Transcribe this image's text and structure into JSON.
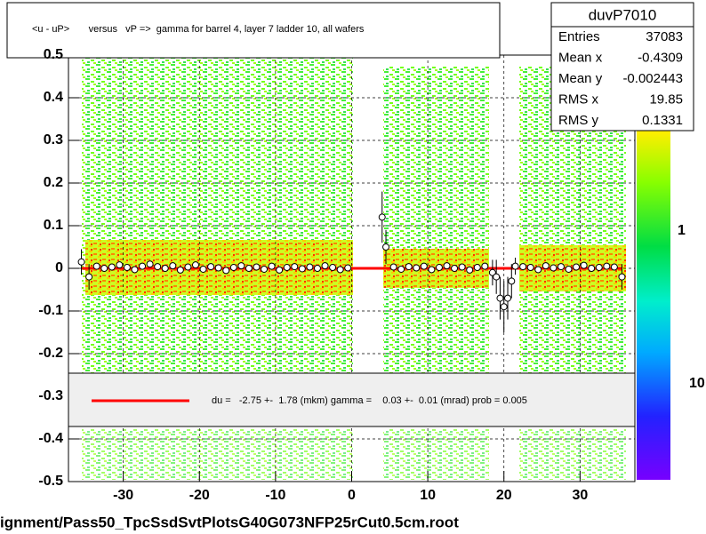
{
  "title": "<u - uP>       versus   vP =>  gamma for barrel 4, layer 7 ladder 10, all wafers",
  "stats": {
    "name": "duvP7010",
    "rows": [
      [
        "Entries",
        "37083"
      ],
      [
        "Mean x",
        "-0.4309"
      ],
      [
        "Mean y",
        "-0.002443"
      ],
      [
        "RMS x",
        "19.85"
      ],
      [
        "RMS y",
        "0.1331"
      ]
    ]
  },
  "palette_labels": [
    "1",
    "10"
  ],
  "footer": "ignment/Pass50_TpcSsdSvtPlotsG40G073NFP25rCut0.5cm.root",
  "chart_data": {
    "type": "profile",
    "x": [
      -35.5,
      -34.5,
      -33.5,
      -32.5,
      -31.5,
      -30.5,
      -29.5,
      -28.5,
      -27.5,
      -26.5,
      -25.5,
      -24.5,
      -23.5,
      -22.5,
      -21.5,
      -20.5,
      -19.5,
      -18.5,
      -17.5,
      -16.5,
      -15.5,
      -14.5,
      -13.5,
      -12.5,
      -11.5,
      -10.5,
      -9.5,
      -8.5,
      -7.5,
      -6.5,
      -5.5,
      -4.5,
      -3.5,
      -2.5,
      -1.5,
      -0.5,
      4,
      4.5,
      5.5,
      6.5,
      7.5,
      8.5,
      9.5,
      10.5,
      11.5,
      12.5,
      13.5,
      14.5,
      15.5,
      16.5,
      17.5,
      18.5,
      19,
      19.5,
      20,
      20.5,
      21,
      21.5,
      22.5,
      23.5,
      24.5,
      25.5,
      26.5,
      27.5,
      28.5,
      29.5,
      30.5,
      31.5,
      32.5,
      33.5,
      34.5,
      35.5
    ],
    "series": [
      {
        "color": "#000000",
        "values": [
          0.015,
          -0.02,
          0.005,
          0,
          0.003,
          0.008,
          0.002,
          -0.003,
          0.005,
          0.01,
          0.004,
          0,
          0.006,
          -0.004,
          0.003,
          0.008,
          -0.002,
          0.004,
          0.001,
          -0.005,
          0.002,
          0.006,
          0,
          0.003,
          -0.002,
          0.005,
          -0.004,
          0.002,
          0.004,
          -0.001,
          0.003,
          0,
          0.006,
          0.002,
          -0.003,
          0.001,
          0.12,
          0.05,
          0.003,
          -0.002,
          0.004,
          0.001,
          0.005,
          -0.003,
          0.002,
          0.006,
          0,
          0.003,
          -0.004,
          0.002,
          0.005,
          -0.01,
          -0.02,
          -0.07,
          -0.09,
          -0.07,
          -0.03,
          0.005,
          0.004,
          0.002,
          -0.003,
          0.006,
          0.001,
          0.004,
          -0.002,
          0.003,
          0.007,
          0,
          0.002,
          0.005,
          0.003,
          -0.02
        ],
        "errors": [
          0.03,
          0.03,
          0.008,
          0.008,
          0.008,
          0.008,
          0.008,
          0.008,
          0.008,
          0.008,
          0.008,
          0.008,
          0.008,
          0.008,
          0.008,
          0.008,
          0.008,
          0.008,
          0.008,
          0.008,
          0.008,
          0.008,
          0.008,
          0.008,
          0.008,
          0.008,
          0.008,
          0.008,
          0.008,
          0.008,
          0.008,
          0.008,
          0.008,
          0.008,
          0.008,
          0.008,
          0.06,
          0.04,
          0.008,
          0.008,
          0.008,
          0.008,
          0.008,
          0.008,
          0.008,
          0.008,
          0.008,
          0.008,
          0.008,
          0.008,
          0.008,
          0.03,
          0.04,
          0.05,
          0.06,
          0.05,
          0.04,
          0.02,
          0.008,
          0.008,
          0.008,
          0.008,
          0.008,
          0.008,
          0.008,
          0.008,
          0.008,
          0.008,
          0.008,
          0.008,
          0.008,
          0.03
        ]
      }
    ],
    "fit": {
      "x": [
        -35.5,
        35.5
      ],
      "y": [
        0,
        0
      ],
      "color": "#ff0000"
    },
    "legend_text": "du =   -2.75 +-  1.78 (mkm) gamma =    0.03 +-  0.01 (mrad) prob = 0.005",
    "xlim": [
      -37.2,
      37.2
    ],
    "ylim": [
      -0.5,
      0.5
    ],
    "xticks": [
      -30,
      -20,
      -10,
      0,
      10,
      20,
      30
    ],
    "yticks": [
      -0.5,
      -0.4,
      -0.3,
      -0.2,
      -0.1,
      0,
      0.1,
      0.2,
      0.3,
      0.4,
      0.5
    ],
    "grid": true
  }
}
